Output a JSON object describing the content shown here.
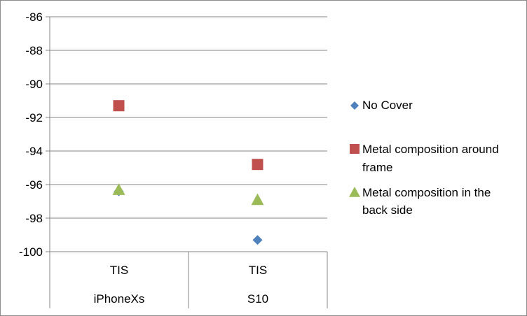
{
  "chart_data": {
    "type": "scatter",
    "categories": [
      "TIS",
      "TIS"
    ],
    "groups": [
      "iPhoneXs",
      "S10"
    ],
    "ylim": [
      -100,
      -86
    ],
    "ytick_step": 2,
    "grid": "horizontal",
    "legend_position": "right",
    "series": [
      {
        "name": "No Cover",
        "marker": "diamond",
        "color": "#4f81bd",
        "values": [
          -96.4,
          -99.3
        ]
      },
      {
        "name": "Metal composition around frame",
        "marker": "square",
        "color": "#c0504d",
        "values": [
          -91.3,
          -94.8
        ]
      },
      {
        "name": "Metal composition in the back side",
        "marker": "triangle",
        "color": "#9bbb59",
        "values": [
          -96.3,
          -96.9
        ]
      }
    ]
  }
}
